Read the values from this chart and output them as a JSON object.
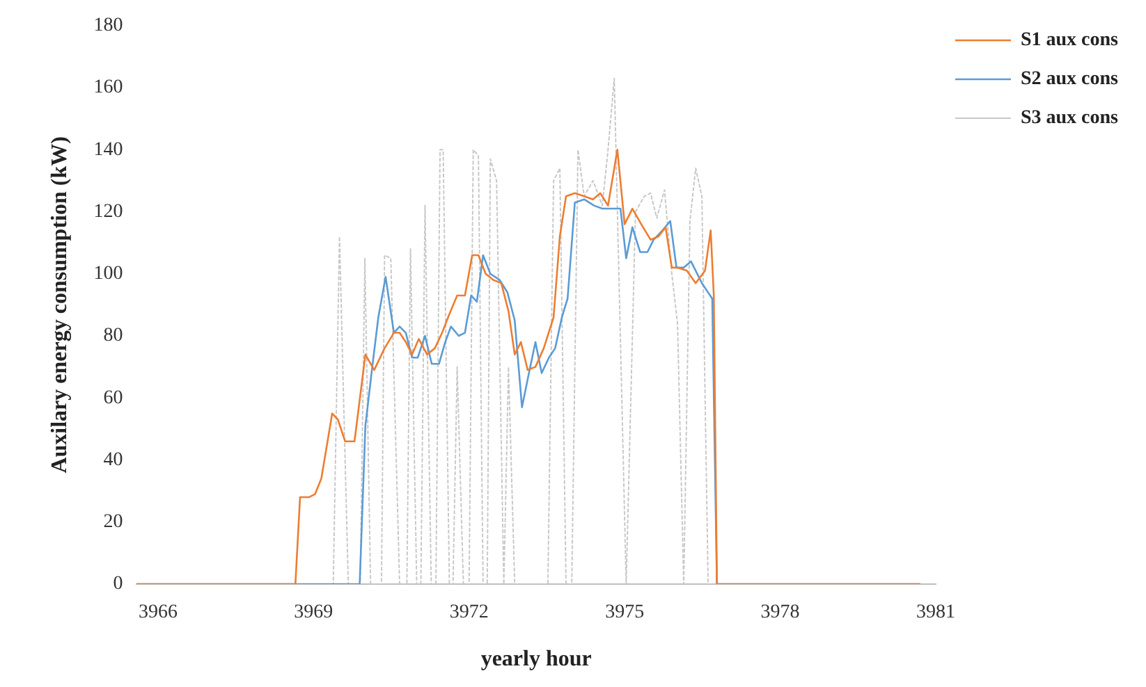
{
  "chart_data": {
    "type": "line",
    "xlabel": "yearly hour",
    "ylabel": "Auxilary energy consumption (kW)",
    "xlim": [
      3965.59,
      3981
    ],
    "xticks": [
      3966,
      3969,
      3972,
      3975,
      3978,
      3981
    ],
    "ylim": [
      0,
      180
    ],
    "yticks": [
      0,
      20,
      40,
      60,
      80,
      100,
      120,
      140,
      160,
      180
    ],
    "grid": false,
    "legend": "top right",
    "marker": "none",
    "series": [
      {
        "name": "S1 aux cons",
        "color": "#ed7d31",
        "line_style": "solid",
        "x": [
          3965.59,
          3968.65,
          3968.74,
          3968.91,
          3969.03,
          3969.15,
          3969.36,
          3969.47,
          3969.61,
          3969.79,
          3970.0,
          3970.17,
          3970.37,
          3970.55,
          3970.66,
          3970.78,
          3970.9,
          3971.03,
          3971.19,
          3971.34,
          3971.48,
          3971.62,
          3971.77,
          3971.92,
          3972.06,
          3972.18,
          3972.32,
          3972.47,
          3972.62,
          3972.76,
          3972.88,
          3973.0,
          3973.13,
          3973.28,
          3973.44,
          3973.63,
          3973.75,
          3973.87,
          3974.04,
          3974.22,
          3974.39,
          3974.53,
          3974.68,
          3974.86,
          3975.0,
          3975.15,
          3975.32,
          3975.5,
          3975.65,
          3975.79,
          3975.91,
          3976.02,
          3976.2,
          3976.37,
          3976.55,
          3976.66,
          3976.72,
          3976.78,
          3980.69
        ],
        "values": [
          0,
          0,
          28,
          28,
          29,
          34,
          55,
          53,
          46,
          46,
          74,
          69,
          76,
          81,
          81,
          78,
          74,
          79,
          74,
          76,
          81,
          87,
          93,
          93,
          106,
          106,
          100,
          98,
          97,
          88,
          74,
          78,
          69,
          70,
          76,
          86,
          112,
          125,
          126,
          125,
          124,
          126,
          122,
          140,
          116,
          121,
          116,
          111,
          112,
          115,
          102,
          102,
          101,
          97,
          101,
          114,
          93,
          0,
          0
        ]
      },
      {
        "name": "S2 aux cons",
        "color": "#5b9bd5",
        "line_style": "solid",
        "x": [
          3965.59,
          3969.89,
          3970.0,
          3970.14,
          3970.25,
          3970.39,
          3970.55,
          3970.66,
          3970.78,
          3970.9,
          3971.01,
          3971.15,
          3971.28,
          3971.42,
          3971.54,
          3971.65,
          3971.8,
          3971.92,
          3972.04,
          3972.15,
          3972.27,
          3972.41,
          3972.59,
          3972.74,
          3972.88,
          3973.02,
          3973.13,
          3973.28,
          3973.4,
          3973.54,
          3973.66,
          3973.79,
          3973.9,
          3974.04,
          3974.22,
          3974.41,
          3974.57,
          3974.74,
          3974.92,
          3975.03,
          3975.15,
          3975.3,
          3975.44,
          3975.56,
          3975.73,
          3975.88,
          3976.0,
          3976.14,
          3976.28,
          3976.49,
          3976.69,
          3976.78,
          3980.69
        ],
        "values": [
          0,
          0,
          51,
          71,
          86,
          99,
          81,
          83,
          81,
          73,
          73,
          80,
          71,
          71,
          78,
          83,
          80,
          81,
          93,
          91,
          106,
          100,
          98,
          94,
          85,
          57,
          66,
          78,
          68,
          73,
          76,
          86,
          92,
          123,
          124,
          122,
          121,
          121,
          121,
          105,
          115,
          107,
          107,
          111,
          114,
          117,
          102,
          102,
          104,
          97,
          92,
          0,
          0
        ]
      },
      {
        "name": "S3 aux cons",
        "color": "#c8c8c8",
        "line_style": "dotted",
        "x": [
          3965.59,
          3969.38,
          3969.5,
          3969.67,
          3969.9,
          3969.99,
          3970.1,
          3970.31,
          3970.37,
          3970.49,
          3970.66,
          3970.8,
          3970.87,
          3970.99,
          3971.07,
          3971.15,
          3971.27,
          3971.36,
          3971.44,
          3971.5,
          3971.62,
          3971.69,
          3971.77,
          3971.89,
          3972.0,
          3972.08,
          3972.18,
          3972.27,
          3972.35,
          3972.41,
          3972.53,
          3972.67,
          3972.76,
          3972.88,
          3973.52,
          3973.63,
          3973.75,
          3973.87,
          3973.98,
          3974.1,
          3974.22,
          3974.39,
          3974.57,
          3974.68,
          3974.8,
          3975.03,
          3975.21,
          3975.38,
          3975.5,
          3975.62,
          3975.77,
          3975.91,
          3976.02,
          3976.14,
          3976.26,
          3976.37,
          3976.49,
          3976.61,
          3980.69
        ],
        "values": [
          0,
          0,
          112,
          0,
          0,
          105,
          0,
          0,
          106,
          105,
          0,
          0,
          108,
          0,
          0,
          122,
          0,
          0,
          140,
          140,
          0,
          0,
          70,
          0,
          0,
          140,
          138,
          0,
          0,
          137,
          130,
          0,
          70,
          0,
          0,
          130,
          134,
          0,
          0,
          140,
          125,
          130,
          122,
          140,
          163,
          0,
          120,
          125,
          126,
          118,
          127,
          100,
          84,
          0,
          117,
          134,
          125,
          0,
          0
        ]
      }
    ]
  }
}
